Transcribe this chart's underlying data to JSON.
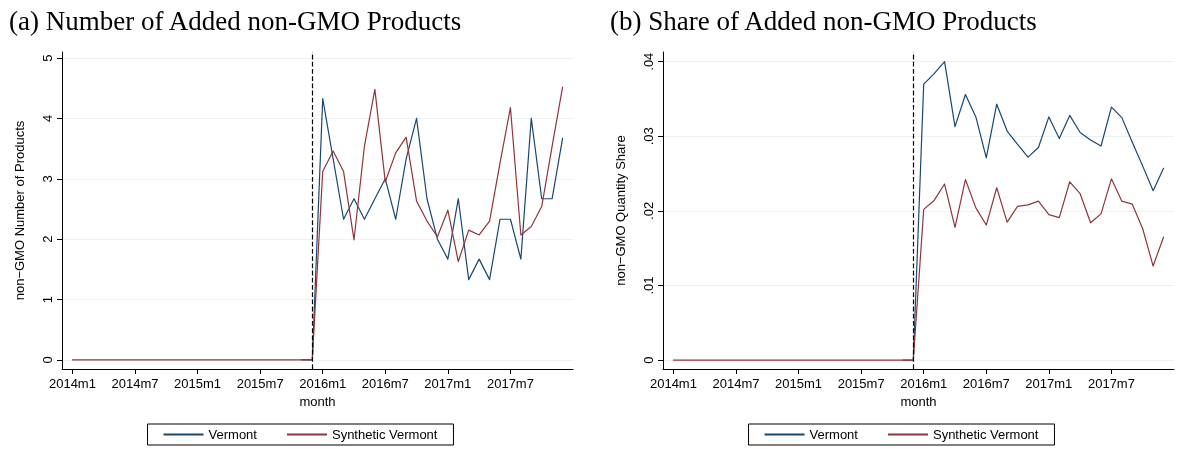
{
  "chart_data": [
    {
      "type": "line",
      "title": "(a) Number of Added non-GMO Products",
      "xlabel": "month",
      "ylabel": "non−GMO Number of Products",
      "x": [
        "2014-01",
        "2014-02",
        "2014-03",
        "2014-04",
        "2014-05",
        "2014-06",
        "2014-07",
        "2014-08",
        "2014-09",
        "2014-10",
        "2014-11",
        "2014-12",
        "2015-01",
        "2015-02",
        "2015-03",
        "2015-04",
        "2015-05",
        "2015-06",
        "2015-07",
        "2015-08",
        "2015-09",
        "2015-10",
        "2015-11",
        "2015-12",
        "2016-01",
        "2016-02",
        "2016-03",
        "2016-04",
        "2016-05",
        "2016-06",
        "2016-07",
        "2016-08",
        "2016-09",
        "2016-10",
        "2016-11",
        "2016-12",
        "2017-01",
        "2017-02",
        "2017-03",
        "2017-04",
        "2017-05",
        "2017-06",
        "2017-07",
        "2017-08",
        "2017-09",
        "2017-10",
        "2017-11",
        "2017-12"
      ],
      "series": [
        {
          "name": "Vermont",
          "color": "#1a476f",
          "values": [
            null,
            null,
            null,
            null,
            null,
            null,
            null,
            null,
            null,
            null,
            null,
            null,
            null,
            null,
            null,
            null,
            null,
            null,
            null,
            null,
            null,
            null,
            0,
            0,
            4.33,
            3.33,
            2.33,
            2.67,
            2.33,
            2.67,
            3,
            2.33,
            3.33,
            4,
            2.67,
            2,
            1.67,
            2.67,
            1.33,
            1.67,
            1.33,
            2.33,
            2.33,
            1.67,
            4,
            2.67,
            2.67,
            3.67
          ]
        },
        {
          "name": "Synthetic Vermont",
          "color": "#90353b",
          "values": [
            0,
            0,
            0,
            0,
            0,
            0,
            0,
            0,
            0,
            0,
            0,
            0,
            0,
            0,
            0,
            0,
            0,
            0,
            0,
            0,
            0,
            0,
            0,
            0,
            3.12,
            3.46,
            3.12,
            1.99,
            3.54,
            4.48,
            2.95,
            3.43,
            3.69,
            2.63,
            2.3,
            2.04,
            2.48,
            1.63,
            2.15,
            2.07,
            2.3,
            3.26,
            4.18,
            2.07,
            2.21,
            2.54,
            3.54,
            4.52
          ]
        }
      ],
      "xlim": [
        "2013-12",
        "2018-01"
      ],
      "xticks": [
        {
          "value": "2014-01",
          "label": "2014m1"
        },
        {
          "value": "2014-07",
          "label": "2014m7"
        },
        {
          "value": "2015-01",
          "label": "2015m1"
        },
        {
          "value": "2015-07",
          "label": "2015m7"
        },
        {
          "value": "2016-01",
          "label": "2016m1"
        },
        {
          "value": "2016-07",
          "label": "2016m7"
        },
        {
          "value": "2017-01",
          "label": "2017m1"
        },
        {
          "value": "2017-07",
          "label": "2017m7"
        }
      ],
      "ylim": [
        -0.15,
        5.1
      ],
      "yticks": [
        0,
        1,
        2,
        3,
        4,
        5
      ],
      "ref_lines": [
        {
          "axis": "x",
          "value": "2015-12",
          "color": "#000000",
          "line_style": "dashed"
        }
      ],
      "grid": "y",
      "legend": "bottom",
      "marker": "none",
      "line_style": "solid"
    },
    {
      "type": "line",
      "title": "(b) Share of Added non-GMO Products",
      "xlabel": "month",
      "ylabel": "non−GMO Quantity Share",
      "x": [
        "2014-01",
        "2014-02",
        "2014-03",
        "2014-04",
        "2014-05",
        "2014-06",
        "2014-07",
        "2014-08",
        "2014-09",
        "2014-10",
        "2014-11",
        "2014-12",
        "2015-01",
        "2015-02",
        "2015-03",
        "2015-04",
        "2015-05",
        "2015-06",
        "2015-07",
        "2015-08",
        "2015-09",
        "2015-10",
        "2015-11",
        "2015-12",
        "2016-01",
        "2016-02",
        "2016-03",
        "2016-04",
        "2016-05",
        "2016-06",
        "2016-07",
        "2016-08",
        "2016-09",
        "2016-10",
        "2016-11",
        "2016-12",
        "2017-01",
        "2017-02",
        "2017-03",
        "2017-04",
        "2017-05",
        "2017-06",
        "2017-07",
        "2017-08",
        "2017-09",
        "2017-10",
        "2017-11",
        "2017-12"
      ],
      "series": [
        {
          "name": "Vermont",
          "color": "#1a476f",
          "values": [
            null,
            null,
            null,
            null,
            null,
            null,
            null,
            null,
            null,
            null,
            null,
            null,
            null,
            null,
            null,
            null,
            null,
            null,
            null,
            null,
            null,
            null,
            0,
            0,
            0.037,
            0.0384,
            0.04,
            0.0313,
            0.0356,
            0.0326,
            0.0271,
            0.0343,
            0.0307,
            0.0289,
            0.0272,
            0.0285,
            0.0326,
            0.0297,
            0.0328,
            0.0305,
            0.0295,
            0.0287,
            0.0339,
            0.0325,
            0.0292,
            0.026,
            0.0227,
            0.0257
          ]
        },
        {
          "name": "Synthetic Vermont",
          "color": "#90353b",
          "values": [
            0,
            0,
            0,
            0,
            0,
            0,
            0,
            0,
            0,
            0,
            0,
            0,
            0,
            0,
            0,
            0,
            0,
            0,
            0,
            0,
            0,
            0,
            0,
            0,
            0.0202,
            0.0214,
            0.0236,
            0.0178,
            0.0242,
            0.0204,
            0.0181,
            0.0231,
            0.0185,
            0.0206,
            0.0208,
            0.0213,
            0.0195,
            0.0191,
            0.0239,
            0.0223,
            0.0184,
            0.0196,
            0.0243,
            0.0213,
            0.0209,
            0.0176,
            0.0126,
            0.0165
          ]
        }
      ],
      "xlim": [
        "2013-12",
        "2018-01"
      ],
      "xticks": [
        {
          "value": "2014-01",
          "label": "2014m1"
        },
        {
          "value": "2014-07",
          "label": "2014m7"
        },
        {
          "value": "2015-01",
          "label": "2015m1"
        },
        {
          "value": "2015-07",
          "label": "2015m7"
        },
        {
          "value": "2016-01",
          "label": "2016m1"
        },
        {
          "value": "2016-07",
          "label": "2016m7"
        },
        {
          "value": "2017-01",
          "label": "2017m1"
        },
        {
          "value": "2017-07",
          "label": "2017m7"
        }
      ],
      "ylim": [
        -0.0012,
        0.0413
      ],
      "yticks": [
        0,
        {
          "value": 0.01,
          "label": ".01"
        },
        {
          "value": 0.02,
          "label": ".02"
        },
        {
          "value": 0.03,
          "label": ".03"
        },
        {
          "value": 0.04,
          "label": ".04"
        }
      ],
      "ref_lines": [
        {
          "axis": "x",
          "value": "2015-12",
          "color": "#000000",
          "line_style": "dashed"
        }
      ],
      "grid": "y",
      "legend": "bottom",
      "marker": "none",
      "line_style": "solid"
    }
  ]
}
